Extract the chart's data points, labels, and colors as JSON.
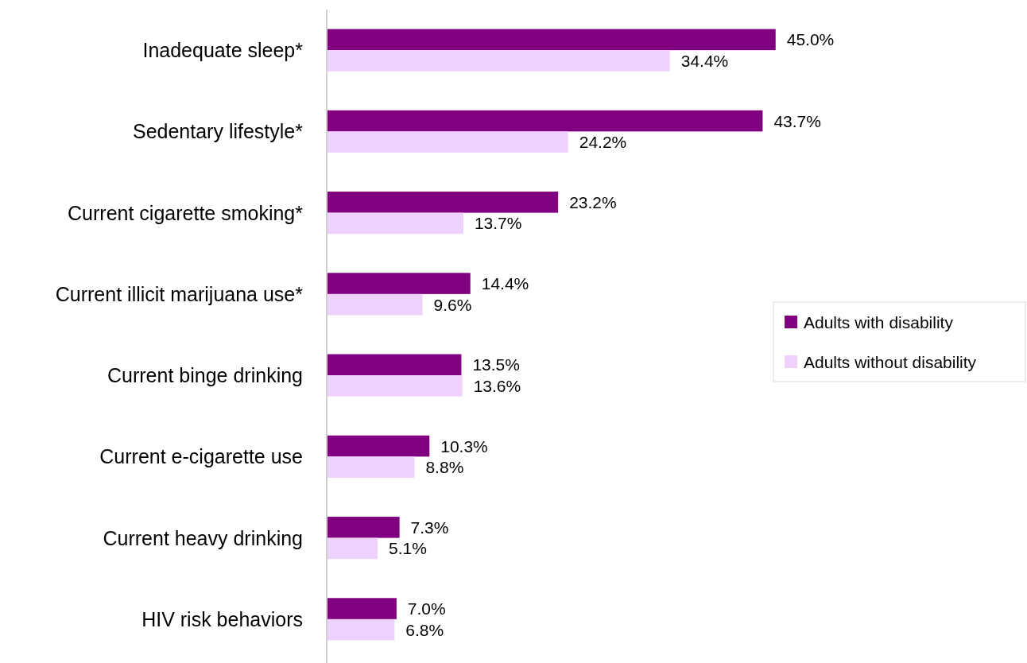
{
  "chart_data": {
    "type": "bar",
    "orientation": "horizontal",
    "categories": [
      "Inadequate sleep*",
      "Sedentary lifestyle*",
      "Current cigarette smoking*",
      "Current illicit marijuana use*",
      "Current binge drinking",
      "Current e-cigarette use",
      "Current heavy drinking",
      "HIV risk behaviors"
    ],
    "series": [
      {
        "name": "Adults with disability",
        "color": "#800080",
        "values": [
          45.0,
          43.7,
          23.2,
          14.4,
          13.5,
          10.3,
          7.3,
          7.0
        ],
        "value_labels": [
          "45.0%",
          "43.7%",
          "23.2%",
          "14.4%",
          "13.5%",
          "10.3%",
          "7.3%",
          "7.0%"
        ]
      },
      {
        "name": "Adults without disability",
        "color": "#efd1fd",
        "values": [
          34.4,
          24.2,
          13.7,
          9.6,
          13.6,
          8.8,
          5.1,
          6.8
        ],
        "value_labels": [
          "34.4%",
          "24.2%",
          "13.7%",
          "9.6%",
          "13.6%",
          "8.8%",
          "5.1%",
          "6.8%"
        ]
      }
    ],
    "tick_labels": "y",
    "legend": "right"
  }
}
